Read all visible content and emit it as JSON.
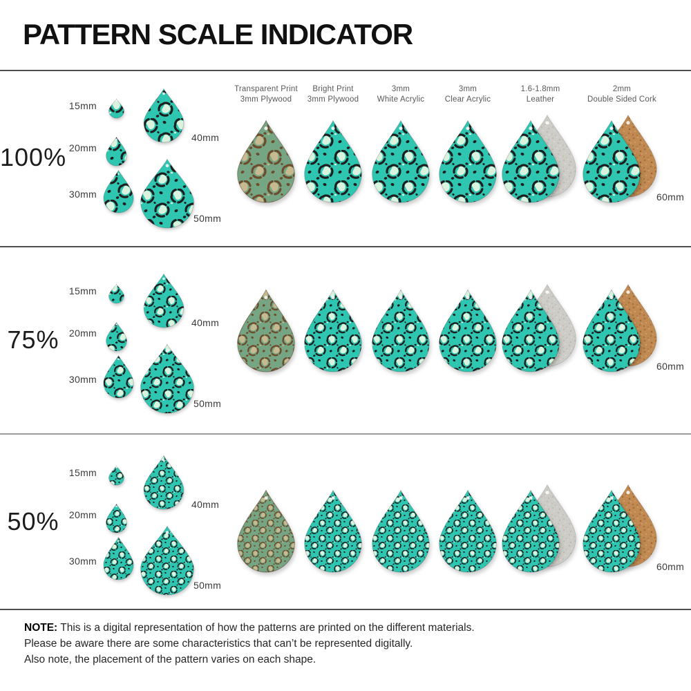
{
  "title": "PATTERN SCALE INDICATOR",
  "rows": [
    {
      "scale_label": "100%",
      "scale_percent": 100
    },
    {
      "scale_label": "75%",
      "scale_percent": 75
    },
    {
      "scale_label": "50%",
      "scale_percent": 50
    }
  ],
  "size_labels": [
    "15mm",
    "20mm",
    "30mm",
    "40mm",
    "50mm"
  ],
  "large_size_label": "60mm",
  "materials": [
    {
      "label_line1": "Transparent Print",
      "label_line2": "3mm Plywood",
      "pattern": "plywood",
      "backing": null
    },
    {
      "label_line1": "Bright Print",
      "label_line2": "3mm Plywood",
      "pattern": "teal",
      "backing": null
    },
    {
      "label_line1": "3mm",
      "label_line2": "White Acrylic",
      "pattern": "teal",
      "backing": null
    },
    {
      "label_line1": "3mm",
      "label_line2": "Clear Acrylic",
      "pattern": "teal",
      "backing": null
    },
    {
      "label_line1": "1.6-1.8mm",
      "label_line2": "Leather",
      "pattern": "teal",
      "backing": "suede"
    },
    {
      "label_line1": "2mm",
      "label_line2": "Double Sided Cork",
      "pattern": "teal",
      "backing": "cork"
    }
  ],
  "note": {
    "label": "NOTE:",
    "line1": " This is a digital representation of how the patterns are printed on the different materials.",
    "line2": "Please be aware there are some characteristics that can’t be represented digitally.",
    "line3": "Also note, the placement of the pattern varies on each shape."
  },
  "colors": {
    "teal_bg": "#2fc6b1",
    "teal_spot_ring": "#1e1e1e",
    "teal_spot_center": "#d9f3de",
    "plywood_bg": "#76a584",
    "plywood_spot_ring": "#6d4c2c",
    "plywood_spot_center": "#c7ba90",
    "suede_bg": "#cdccc6",
    "cork_bg": "#c08a52",
    "separator_dark": "#4e4e4e",
    "separator_light": "#9b9b9b",
    "title_text": "#111111",
    "label_text": "#3a3a3a",
    "header_text": "#585858",
    "note_text": "#262626"
  }
}
